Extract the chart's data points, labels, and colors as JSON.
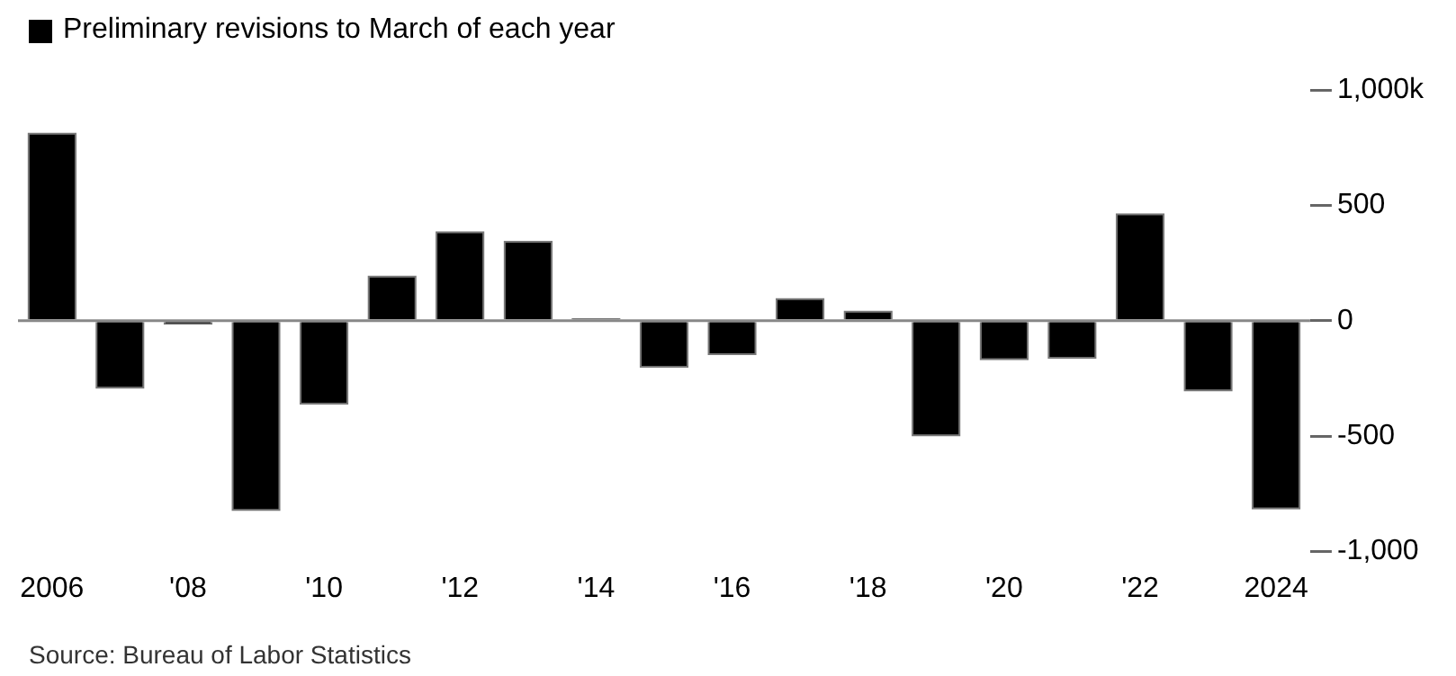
{
  "chart_data": {
    "type": "bar",
    "categories": [
      "2006",
      null,
      "'08",
      null,
      "'10",
      null,
      "'12",
      null,
      "'14",
      null,
      "'16",
      null,
      "'18",
      null,
      "'20",
      null,
      "'22",
      null,
      "2024"
    ],
    "series": [
      {
        "name": "Preliminary revisions to March of each year",
        "color": "#000000",
        "values": [
          815,
          -295,
          -17,
          -824,
          -364,
          196,
          388,
          347,
          11,
          -204,
          -149,
          99,
          44,
          -501,
          -171,
          -165,
          466,
          -306,
          -818
        ]
      }
    ],
    "ylim": [
      -1000,
      1000
    ],
    "yticks": [
      {
        "value": 1000,
        "label": "1,000k"
      },
      500,
      0,
      -500,
      {
        "value": -1000,
        "label": "-1,000"
      }
    ],
    "grid": "y",
    "legend": "top left",
    "annotations": [
      "Source: Bureau of Labor Statistics"
    ]
  }
}
